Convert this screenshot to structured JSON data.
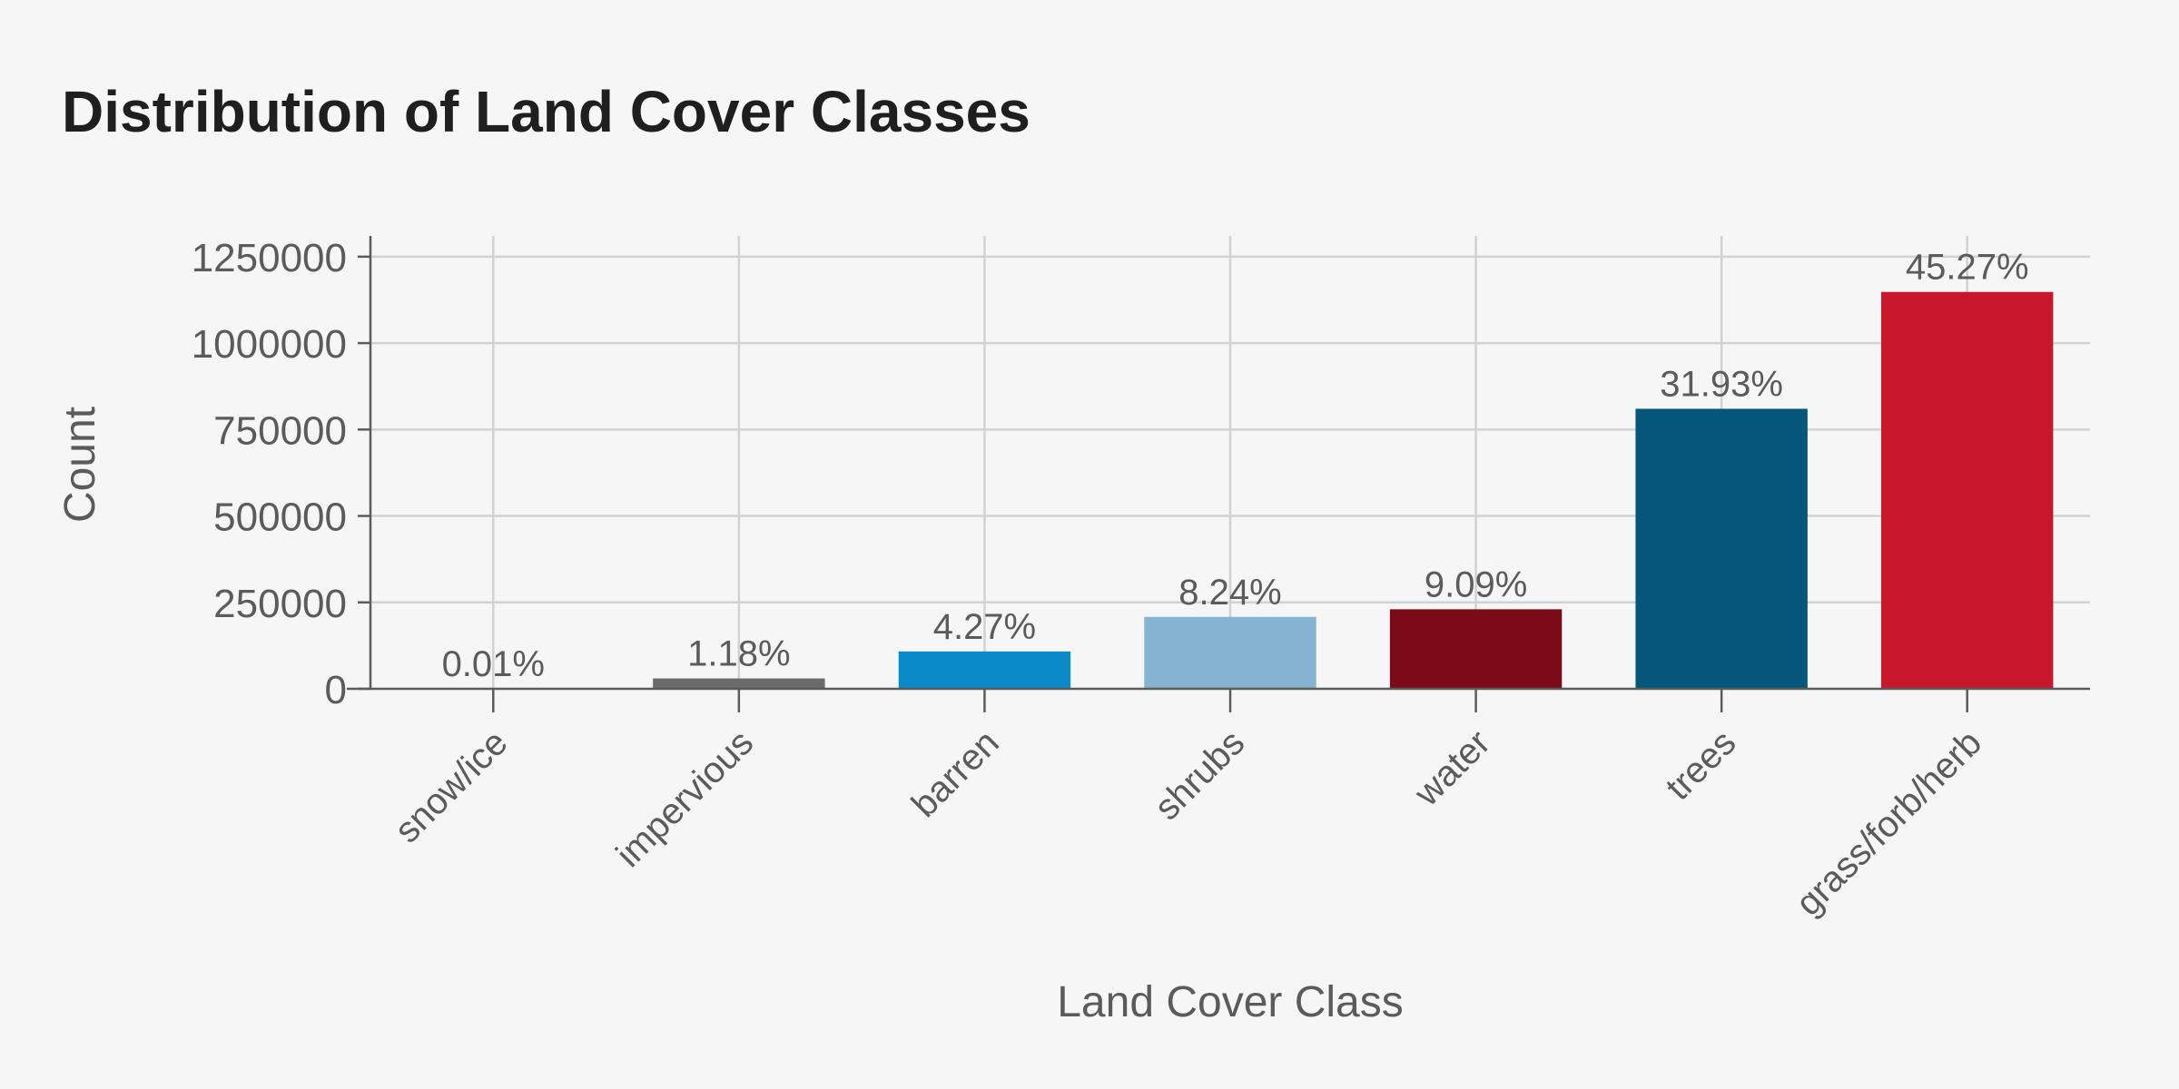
{
  "chart_data": {
    "type": "bar",
    "title": "Distribution of Land Cover Classes",
    "xlabel": "Land Cover Class",
    "ylabel": "Count",
    "categories": [
      "snow/ice",
      "impervious",
      "barren",
      "shrubs",
      "water",
      "trees",
      "grass/forb/herb"
    ],
    "values": [
      250,
      30000,
      108000,
      208000,
      230000,
      810000,
      1148000
    ],
    "data_labels": [
      "0.01%",
      "1.18%",
      "4.27%",
      "8.24%",
      "9.09%",
      "31.93%",
      "45.27%"
    ],
    "colors": [
      "#6b6b6b",
      "#6b6b6b",
      "#0a8ac6",
      "#85b4d3",
      "#7a0a18",
      "#04567a",
      "#c8162b"
    ],
    "ylim": [
      0,
      1310000
    ],
    "yticks": [
      0,
      250000,
      500000,
      750000,
      1000000,
      1250000
    ],
    "ytick_labels": [
      "0",
      "250000",
      "500000",
      "750000",
      "1000000",
      "1250000"
    ],
    "grid": true
  }
}
